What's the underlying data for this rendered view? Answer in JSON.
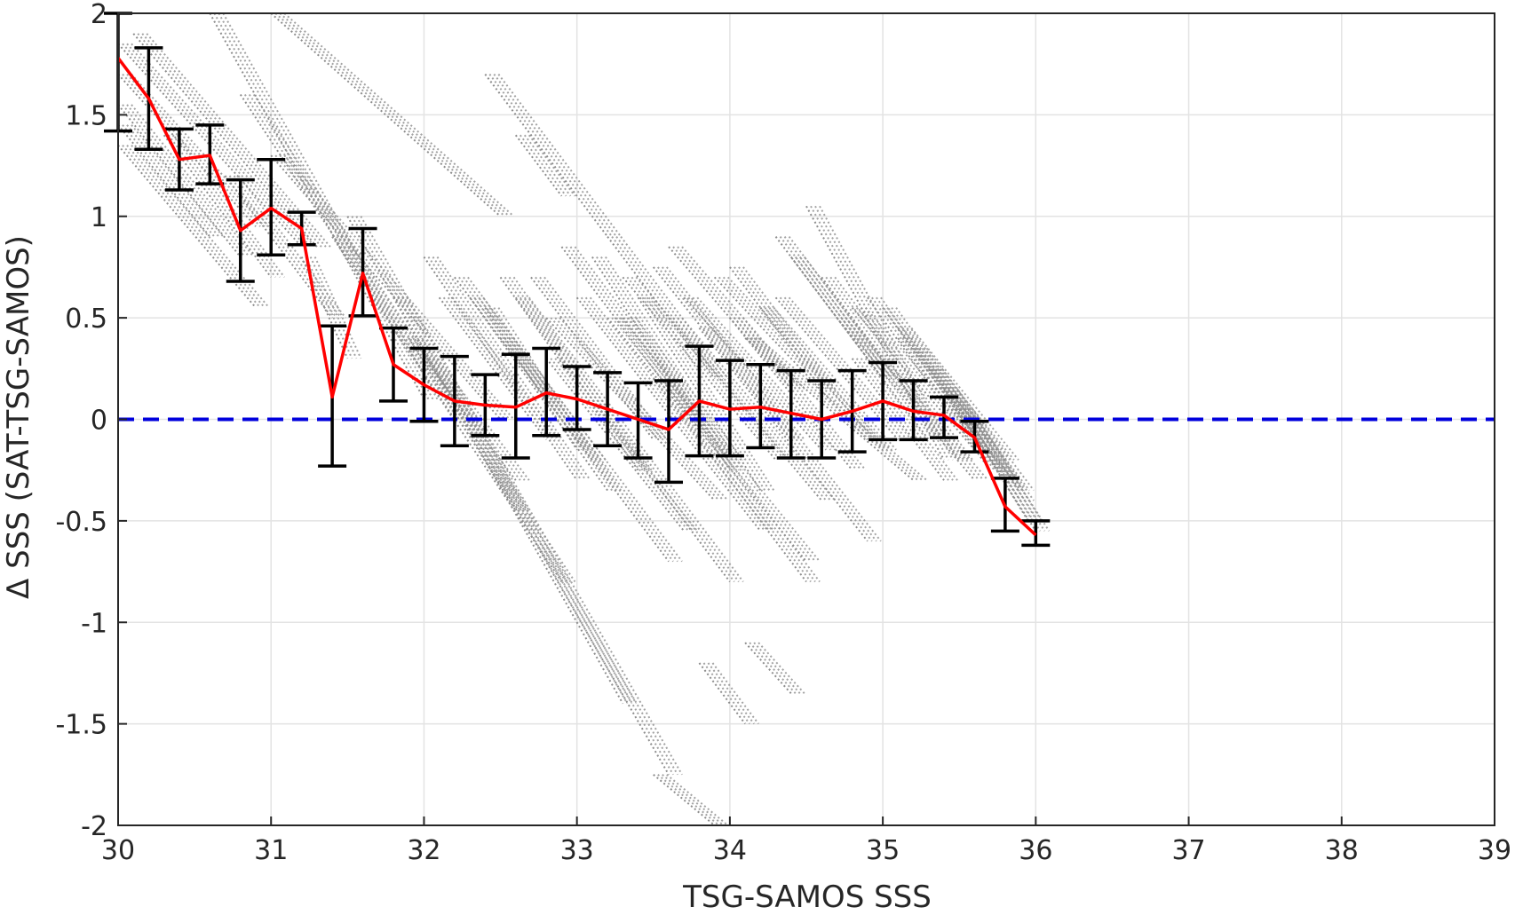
{
  "chart_data": {
    "type": "scatter",
    "title": "",
    "xlabel": "TSG-SAMOS SSS",
    "ylabel": "Δ SSS (SAT-TSG-SAMOS)",
    "xlim": [
      30,
      39
    ],
    "ylim": [
      -2,
      2
    ],
    "grid": true,
    "x_ticks": [
      "30",
      "31",
      "32",
      "33",
      "34",
      "35",
      "36",
      "37",
      "38",
      "39"
    ],
    "y_ticks": [
      "2",
      "1.5",
      "1",
      "0.5",
      "0",
      "-0.5",
      "-1",
      "-1.5",
      "-2"
    ],
    "colors": {
      "scatter": "#8c8c8c",
      "mean_line": "#ff0000",
      "error_bars": "#000000",
      "zero_line": "#0000dd"
    },
    "reference_line": {
      "y": 0,
      "style": "dashed",
      "color": "#0000dd"
    },
    "scatter_streaks": [
      [
        30.0,
        1.85,
        31.2,
        0.85
      ],
      [
        30.0,
        1.7,
        30.9,
        0.95
      ],
      [
        30.0,
        1.55,
        30.8,
        0.8
      ],
      [
        30.0,
        1.45,
        30.6,
        0.9
      ],
      [
        30.1,
        1.9,
        31.3,
        0.85
      ],
      [
        30.0,
        1.35,
        30.9,
        0.55
      ],
      [
        30.3,
        1.4,
        31.0,
        0.7
      ],
      [
        30.7,
        1.2,
        31.4,
        0.5
      ],
      [
        30.6,
        2.0,
        32.0,
        0.1
      ],
      [
        30.8,
        1.6,
        32.2,
        0.0
      ],
      [
        31.0,
        1.3,
        32.5,
        0.0
      ],
      [
        31.2,
        0.8,
        31.5,
        0.3
      ],
      [
        31.4,
        0.9,
        32.9,
        -0.8
      ],
      [
        31.5,
        1.0,
        33.6,
        -1.75
      ],
      [
        31.8,
        0.6,
        33.3,
        -1.4
      ],
      [
        31.9,
        0.4,
        32.6,
        -0.45
      ],
      [
        32.0,
        0.8,
        33.0,
        -0.3
      ],
      [
        32.1,
        0.6,
        32.8,
        -0.1
      ],
      [
        32.2,
        0.7,
        33.6,
        -0.7
      ],
      [
        32.3,
        0.6,
        33.2,
        -0.35
      ],
      [
        32.4,
        0.55,
        33.0,
        -0.15
      ],
      [
        32.5,
        0.7,
        33.4,
        -0.25
      ],
      [
        32.6,
        0.6,
        34.0,
        -0.8
      ],
      [
        32.7,
        0.7,
        33.5,
        -0.1
      ],
      [
        32.8,
        0.5,
        33.9,
        -0.4
      ],
      [
        32.9,
        0.85,
        33.8,
        -0.05
      ],
      [
        33.0,
        0.6,
        34.2,
        -0.55
      ],
      [
        33.1,
        0.8,
        34.0,
        -0.25
      ],
      [
        33.2,
        0.5,
        34.5,
        -0.7
      ],
      [
        33.3,
        0.7,
        34.3,
        -0.2
      ],
      [
        33.4,
        0.6,
        34.2,
        -0.35
      ],
      [
        33.5,
        0.75,
        34.4,
        -0.1
      ],
      [
        33.6,
        0.5,
        34.6,
        -0.4
      ],
      [
        33.7,
        0.6,
        34.6,
        -0.15
      ],
      [
        33.8,
        0.45,
        34.9,
        -0.6
      ],
      [
        33.9,
        0.7,
        34.9,
        -0.1
      ],
      [
        34.0,
        0.5,
        34.8,
        -0.25
      ],
      [
        34.1,
        0.4,
        35.2,
        -0.3
      ],
      [
        34.2,
        0.55,
        35.0,
        -0.15
      ],
      [
        34.3,
        0.6,
        35.1,
        -0.1
      ],
      [
        34.4,
        0.8,
        35.3,
        -0.1
      ],
      [
        34.5,
        1.05,
        35.4,
        -0.2
      ],
      [
        34.6,
        0.7,
        35.5,
        -0.2
      ],
      [
        34.7,
        0.5,
        35.6,
        -0.3
      ],
      [
        34.8,
        0.55,
        35.6,
        -0.15
      ],
      [
        34.9,
        0.6,
        35.7,
        -0.25
      ],
      [
        35.0,
        0.55,
        35.8,
        -0.3
      ],
      [
        35.1,
        0.45,
        35.8,
        -0.2
      ],
      [
        35.2,
        0.35,
        35.9,
        -0.35
      ],
      [
        35.3,
        0.25,
        35.9,
        -0.4
      ],
      [
        35.4,
        0.15,
        36.0,
        -0.55
      ],
      [
        35.5,
        0.05,
        35.95,
        -0.5
      ],
      [
        33.2,
        0.9,
        33.9,
        0.2
      ],
      [
        33.6,
        0.85,
        34.4,
        0.15
      ],
      [
        34.0,
        0.75,
        34.6,
        0.15
      ],
      [
        34.3,
        0.9,
        35.0,
        0.2
      ],
      [
        32.8,
        0.3,
        33.7,
        -0.55
      ],
      [
        33.5,
        0.2,
        34.5,
        -0.8
      ],
      [
        34.1,
        -1.1,
        34.4,
        -1.35
      ],
      [
        33.8,
        -1.2,
        34.1,
        -1.5
      ],
      [
        33.5,
        -1.75,
        33.9,
        -2.0
      ],
      [
        31.0,
        2.0,
        32.5,
        1.0
      ],
      [
        32.4,
        1.7,
        33.2,
        0.9
      ],
      [
        32.6,
        1.4,
        32.9,
        1.1
      ],
      [
        32.0,
        0.3,
        32.6,
        -0.3
      ],
      [
        32.5,
        0.4,
        33.1,
        -0.2
      ],
      [
        34.8,
        0.3,
        35.4,
        -0.3
      ],
      [
        35.1,
        0.4,
        35.6,
        -0.1
      ],
      [
        33.3,
        0.5,
        34.0,
        -0.2
      ]
    ],
    "binned_mean": {
      "x": [
        30.0,
        30.2,
        30.4,
        30.6,
        30.8,
        31.0,
        31.2,
        31.4,
        31.6,
        31.8,
        32.0,
        32.2,
        32.4,
        32.6,
        32.8,
        33.0,
        33.2,
        33.4,
        33.6,
        33.8,
        34.0,
        34.2,
        34.4,
        34.6,
        34.8,
        35.0,
        35.2,
        35.4,
        35.6,
        35.8,
        36.0
      ],
      "y": [
        1.78,
        1.58,
        1.28,
        1.3,
        0.93,
        1.04,
        0.94,
        0.11,
        0.72,
        0.27,
        0.17,
        0.09,
        0.07,
        0.06,
        0.13,
        0.1,
        0.05,
        0.0,
        -0.05,
        0.09,
        0.05,
        0.06,
        0.03,
        0.0,
        0.04,
        0.09,
        0.04,
        0.02,
        -0.09,
        -0.43,
        -0.57
      ],
      "err_low": [
        1.42,
        1.33,
        1.13,
        1.16,
        0.68,
        0.81,
        0.86,
        -0.23,
        0.51,
        0.09,
        -0.01,
        -0.13,
        -0.08,
        -0.19,
        -0.08,
        -0.05,
        -0.13,
        -0.19,
        -0.31,
        -0.18,
        -0.18,
        -0.14,
        -0.19,
        -0.19,
        -0.16,
        -0.1,
        -0.1,
        -0.09,
        -0.16,
        -0.55,
        -0.62
      ],
      "err_high": [
        2.0,
        1.83,
        1.43,
        1.45,
        1.18,
        1.28,
        1.02,
        0.46,
        0.94,
        0.45,
        0.35,
        0.31,
        0.22,
        0.32,
        0.35,
        0.26,
        0.23,
        0.18,
        0.19,
        0.36,
        0.29,
        0.27,
        0.24,
        0.19,
        0.24,
        0.28,
        0.19,
        0.11,
        -0.01,
        -0.29,
        -0.5
      ]
    }
  }
}
